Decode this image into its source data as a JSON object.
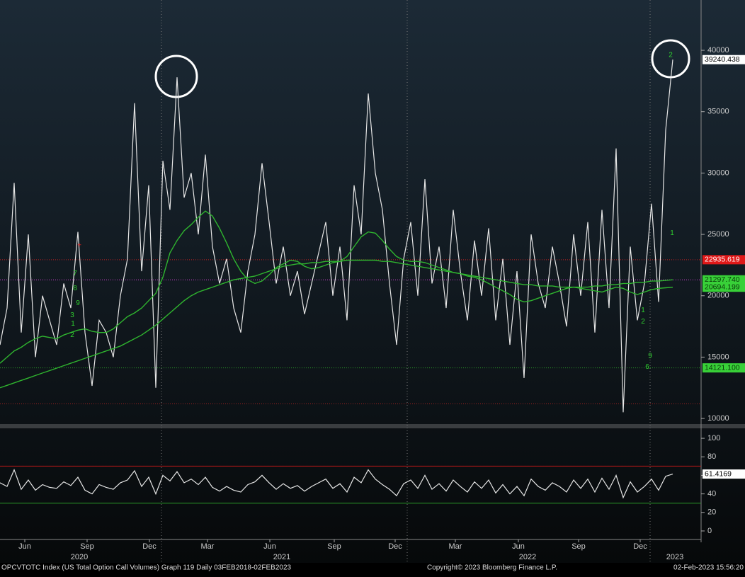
{
  "chart_data": [
    {
      "type": "line",
      "xlim": [
        0,
        99
      ],
      "ylim": [
        9600,
        44100
      ],
      "yticks": [
        10000,
        15000,
        20000,
        25000,
        30000,
        35000,
        40000
      ],
      "series": [
        {
          "color": "#e6e6e6",
          "values": [
            16000,
            19000,
            29200,
            17000,
            25000,
            15000,
            20000,
            18000,
            16000,
            21000,
            19000,
            25200,
            17000,
            12650,
            18000,
            17000,
            15000,
            20000,
            23000,
            35700,
            22000,
            29000,
            12500,
            31000,
            27000,
            37800,
            28000,
            30000,
            25000,
            31500,
            24000,
            21000,
            23000,
            19000,
            17000,
            22000,
            25000,
            30800,
            26000,
            21000,
            24000,
            20000,
            22000,
            18500,
            21000,
            23500,
            26000,
            20000,
            24000,
            18000,
            29000,
            25000,
            36480,
            30000,
            27000,
            21000,
            16000,
            23000,
            26000,
            20000,
            29500,
            21000,
            24000,
            19000,
            27000,
            22000,
            18000,
            24500,
            20000,
            25500,
            18000,
            23000,
            16000,
            22000,
            13300,
            25000,
            21000,
            19000,
            24000,
            21000,
            17500,
            25000,
            20000,
            26000,
            17000,
            27000,
            19000,
            32000,
            10500,
            24000,
            18000,
            21000,
            27500,
            19500,
            33500,
            39240.438
          ]
        },
        {
          "color": "#2fb52f",
          "values": [
            14500,
            15000,
            15500,
            15800,
            16200,
            16500,
            16700,
            16600,
            16500,
            16800,
            17000,
            17200,
            17300,
            17100,
            17000,
            17000,
            17300,
            17800,
            18300,
            18600,
            19000,
            19600,
            20200,
            21500,
            23500,
            24500,
            25300,
            25800,
            26400,
            26900,
            26500,
            25500,
            24300,
            23000,
            22000,
            21300,
            21000,
            21200,
            21700,
            22300,
            22600,
            22900,
            22800,
            22400,
            22200,
            22300,
            22500,
            22700,
            22800,
            23200,
            24000,
            24800,
            25200,
            25100,
            24500,
            23800,
            23200,
            22900,
            22800,
            22800,
            22700,
            22500,
            22300,
            22100,
            21900,
            21800,
            21600,
            21500,
            21300,
            21000,
            20700,
            20400,
            20100,
            19700,
            19500,
            19600,
            19800,
            20000,
            20200,
            20400,
            20600,
            20700,
            20600,
            20500,
            20400,
            20300,
            20500,
            20700,
            20600,
            20300,
            20100,
            20300,
            20500,
            20600,
            20650,
            20694.199
          ]
        },
        {
          "color": "#2fb52f",
          "values": [
            12500,
            12700,
            12900,
            13100,
            13300,
            13500,
            13700,
            13900,
            14100,
            14300,
            14500,
            14700,
            14900,
            15100,
            15300,
            15500,
            15700,
            15900,
            16200,
            16500,
            16800,
            17200,
            17600,
            18100,
            18600,
            19100,
            19600,
            20000,
            20300,
            20500,
            20700,
            20900,
            21100,
            21300,
            21400,
            21500,
            21600,
            21800,
            22000,
            22200,
            22400,
            22500,
            22600,
            22600,
            22700,
            22700,
            22800,
            22800,
            22800,
            22900,
            22900,
            22900,
            22900,
            22900,
            22800,
            22800,
            22700,
            22600,
            22500,
            22400,
            22300,
            22200,
            22100,
            22000,
            21900,
            21800,
            21700,
            21600,
            21500,
            21400,
            21300,
            21200,
            21100,
            21000,
            20900,
            20900,
            20800,
            20800,
            20800,
            20700,
            20700,
            20700,
            20700,
            20700,
            20800,
            20800,
            20900,
            20900,
            21000,
            21000,
            21100,
            21100,
            21200,
            21200,
            21250,
            21297.74
          ]
        }
      ],
      "callouts": [
        {
          "value": 39240.438,
          "label": "39240.438",
          "color": "#ffffff",
          "text_color": "#000000"
        },
        {
          "value": 22935.619,
          "label": "22935.619",
          "color": "#e01818",
          "text_color": "#ffffff"
        },
        {
          "value": 21297.74,
          "label": "21297.740",
          "color": "#38d038",
          "text_color": "#0a3a0a"
        },
        {
          "value": 20694.199,
          "label": "20694.199",
          "color": "#38d038",
          "text_color": "#0a3a0a"
        },
        {
          "value": 14121.1,
          "label": "14121.100",
          "color": "#38d038",
          "text_color": "#0a3a0a"
        }
      ],
      "reference_lines": [
        {
          "value": 21297.74,
          "color": "#d040d0"
        },
        {
          "value": 22935.619,
          "color": "#c02020"
        },
        {
          "value": 14121.1,
          "color": "#2a9a2a"
        },
        {
          "value": 11200,
          "color": "#a02020"
        }
      ],
      "annotations": [
        {
          "text": "2",
          "x": 94.7,
          "y": 39600,
          "color": "#2fd02f"
        },
        {
          "text": "1",
          "x": 94.9,
          "y": 25100,
          "color": "#2fd02f"
        },
        {
          "text": "+",
          "x": 11.2,
          "y": 24100,
          "color": "#e02020"
        },
        {
          "text": "7",
          "x": 10.6,
          "y": 21800,
          "color": "#2fd02f"
        },
        {
          "text": "8",
          "x": 10.6,
          "y": 20600,
          "color": "#2fd02f"
        },
        {
          "text": "9",
          "x": 11.0,
          "y": 19400,
          "color": "#2fd02f"
        },
        {
          "text": "3",
          "x": 10.2,
          "y": 18400,
          "color": "#2fd02f"
        },
        {
          "text": "1",
          "x": 10.3,
          "y": 17700,
          "color": "#2fd02f"
        },
        {
          "text": "2",
          "x": 10.2,
          "y": 16800,
          "color": "#2fd02f"
        },
        {
          "text": "1",
          "x": 90.8,
          "y": 18800,
          "color": "#2fd02f"
        },
        {
          "text": "2",
          "x": 90.8,
          "y": 17900,
          "color": "#2fd02f"
        },
        {
          "text": "9",
          "x": 91.8,
          "y": 15100,
          "color": "#2fd02f"
        },
        {
          "text": "6",
          "x": 91.4,
          "y": 14200,
          "color": "#2fd02f"
        }
      ]
    },
    {
      "type": "line",
      "xlim": [
        0,
        99
      ],
      "ylim": [
        -9.2,
        110
      ],
      "yticks": [
        0,
        20,
        40,
        60,
        80,
        100
      ],
      "xticks": [
        {
          "value": 3.5,
          "label": "Jun"
        },
        {
          "value": 12.3,
          "label": "Sep"
        },
        {
          "value": 21.1,
          "label": "Dec"
        },
        {
          "value": 29.3,
          "label": "Mar"
        },
        {
          "value": 38.1,
          "label": "Jun"
        },
        {
          "value": 47.2,
          "label": "Sep"
        },
        {
          "value": 55.8,
          "label": "Dec"
        },
        {
          "value": 64.3,
          "label": "Mar"
        },
        {
          "value": 73.2,
          "label": "Jun"
        },
        {
          "value": 81.7,
          "label": "Sep"
        },
        {
          "value": 90.4,
          "label": "Dec"
        }
      ],
      "year_ticks": [
        {
          "value": 11.2,
          "label": "2020"
        },
        {
          "value": 39.8,
          "label": "2021"
        },
        {
          "value": 74.5,
          "label": "2022"
        },
        {
          "value": 95.3,
          "label": "2023"
        }
      ],
      "series": [
        {
          "color": "#e6e6e6",
          "values": [
            52,
            48,
            66,
            45,
            55,
            44,
            50,
            47,
            46,
            53,
            49,
            58,
            44,
            40,
            50,
            47,
            45,
            52,
            55,
            65,
            48,
            58,
            40,
            60,
            54,
            64,
            52,
            56,
            50,
            58,
            47,
            43,
            48,
            44,
            42,
            50,
            53,
            60,
            52,
            45,
            51,
            46,
            49,
            43,
            48,
            52,
            56,
            46,
            51,
            42,
            58,
            52,
            66,
            56,
            50,
            45,
            38,
            51,
            55,
            46,
            60,
            45,
            51,
            43,
            55,
            48,
            42,
            53,
            46,
            55,
            41,
            50,
            40,
            48,
            38,
            56,
            48,
            44,
            52,
            48,
            42,
            55,
            46,
            56,
            42,
            57,
            45,
            60,
            36,
            53,
            42,
            48,
            56,
            44,
            59,
            61.4169
          ]
        }
      ],
      "callouts": [
        {
          "value": 61.4169,
          "label": "61.4169",
          "color": "#ffffff",
          "text_color": "#000000"
        }
      ],
      "reference_lines": [
        {
          "value": 70,
          "color": "#c01818"
        },
        {
          "value": 30,
          "color": "#2a9a2a"
        }
      ]
    }
  ],
  "footer": {
    "left": "OPCVTOTC Index (US Total Option Call Volumes) Graph 119  Daily 03FEB2018-02FEB2023",
    "center": "Copyright© 2023 Bloomberg Finance L.P.",
    "right": "02-Feb-2023 15:56:20"
  }
}
